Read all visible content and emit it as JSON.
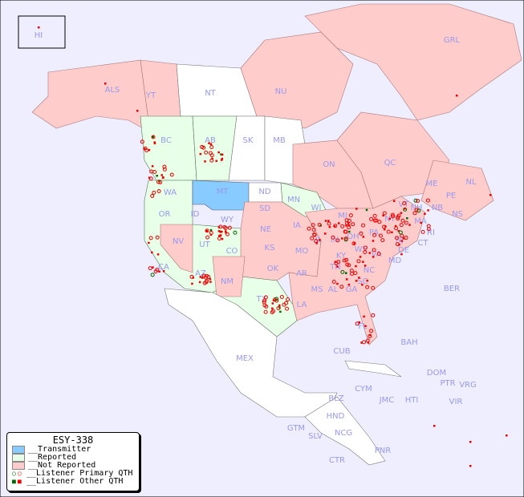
{
  "legend": {
    "title": "ESY-338",
    "items": [
      {
        "label": "__Transmitter",
        "color": "#88ccff"
      },
      {
        "label": "__Reported",
        "color": "#e8ffe8"
      },
      {
        "label": "__Not Reported",
        "color": "#ffcccc"
      },
      {
        "label": "__Listener Primary QTH",
        "colors": [
          "#006600",
          "#ee0000"
        ]
      },
      {
        "label": "__Listener Other QTH",
        "colors": [
          "#006600",
          "#ee0000"
        ]
      }
    ]
  },
  "regions": {
    "HI": "HI",
    "ALS": "ALS",
    "YT": "YT",
    "NT": "NT",
    "NU": "NU",
    "GRL": "GRL",
    "BC": "BC",
    "AB": "AB",
    "SK": "SK",
    "MB": "MB",
    "ON": "ON",
    "QC": "QC",
    "NL": "NL",
    "NS": "NS",
    "NB": "NB",
    "PE": "PE",
    "WA": "WA",
    "OR": "OR",
    "ID": "ID",
    "MT": "MT",
    "ND": "ND",
    "MN": "MN",
    "WI": "WI",
    "SD": "SD",
    "WY": "WY",
    "NV": "NV",
    "UT": "UT",
    "CO": "CO",
    "NE": "NE",
    "IA": "IA",
    "KS": "KS",
    "MO": "MO",
    "CA": "CA",
    "AZ": "AZ",
    "NM": "NM",
    "OK": "OK",
    "AR": "AR",
    "TX": "TX",
    "LA": "LA",
    "MS": "MS",
    "AL": "AL",
    "GA": "GA",
    "TN": "TN",
    "KY": "KY",
    "IN": "IN",
    "IL": "IL",
    "OH": "OH",
    "MI": "MI",
    "PA": "PA",
    "NY": "NY",
    "VT": "VT",
    "NH": "NH",
    "ME": "ME",
    "MA": "MA",
    "CT": "CT",
    "RI": "RI",
    "NJ": "NJ",
    "DE": "DE",
    "MD": "MD",
    "VA": "VA",
    "WV": "WV",
    "NC": "NC",
    "SC": "SC",
    "FL": "FL",
    "BER": "BER",
    "BAH": "BAH",
    "CUB": "CUB",
    "DOM": "DOM",
    "PTR": "PTR",
    "VRG": "VRG",
    "CYM": "CYM",
    "JMC": "JMC",
    "HTI": "HTI",
    "VIR": "VIR",
    "MEX": "MEX",
    "BLZ": "BLZ",
    "HND": "HND",
    "GTM": "GTM",
    "SLV": "SLV",
    "NCG": "NCG",
    "CTR": "CTR",
    "PNR": "PNR"
  },
  "colors": {
    "background": "#eeeeff",
    "not_reported": "#ffcccc",
    "reported": "#e8ffe8",
    "transmitter": "#88ccff",
    "listener": "#ee0000"
  }
}
